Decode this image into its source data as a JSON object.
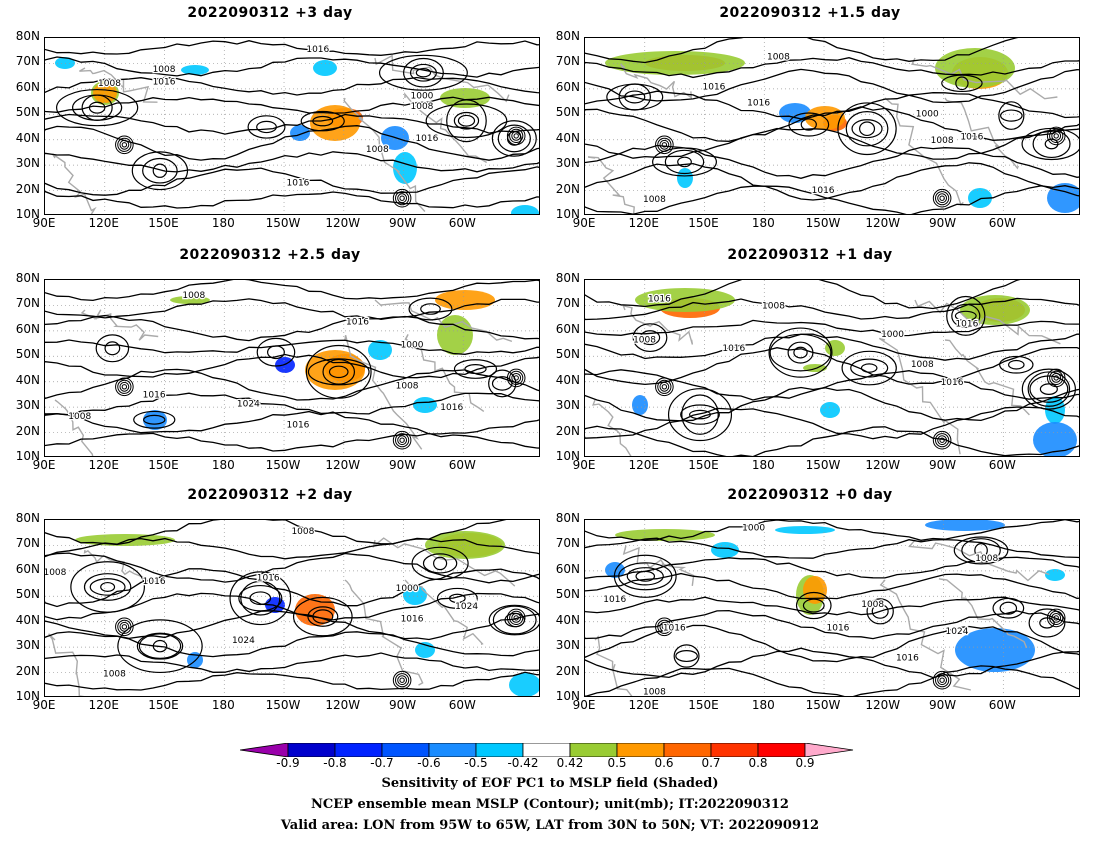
{
  "panels": [
    {
      "title": "2022090312 +3 day"
    },
    {
      "title": "2022090312 +1.5 day"
    },
    {
      "title": "2022090312 +2.5 day"
    },
    {
      "title": "2022090312 +1 day"
    },
    {
      "title": "2022090312 +2 day"
    },
    {
      "title": "2022090312 +0 day"
    }
  ],
  "lat_labels": [
    "80N",
    "70N",
    "60N",
    "50N",
    "40N",
    "30N",
    "20N",
    "10N"
  ],
  "lon_labels": [
    "90E",
    "120E",
    "150E",
    "180",
    "150W",
    "120W",
    "90W",
    "60W"
  ],
  "contour_labels": [
    [
      "1016",
      "1008",
      "1016",
      "1008",
      "1000",
      "1008",
      "1016",
      "1008",
      "1016"
    ],
    [
      "1008",
      "1016",
      "1016",
      "1000",
      "1008",
      "1016",
      "1008",
      "1016"
    ],
    [
      "1008",
      "1016",
      "1000",
      "1008",
      "1016",
      "1024",
      "1016",
      "1008",
      "1016"
    ],
    [
      "1016",
      "1008",
      "1008",
      "1016",
      "1000",
      "1016",
      "1008",
      "1016"
    ],
    [
      "1008",
      "1016",
      "1016",
      "1000",
      "1016",
      "1024",
      "1024",
      "1008",
      "1008"
    ],
    [
      "1000",
      "1008",
      "1016",
      "1008",
      "1016",
      "1016",
      "1024",
      "1016",
      "1008"
    ]
  ],
  "colorbar": {
    "labels": [
      "-0.9",
      "-0.8",
      "-0.7",
      "-0.6",
      "-0.5",
      "-0.42",
      "0.42",
      "0.5",
      "0.6",
      "0.7",
      "0.8",
      "0.9"
    ],
    "colors": [
      "#9900aa",
      "#0000cc",
      "#0022ff",
      "#0055ff",
      "#1a8cff",
      "#00c8ff",
      "#ffffff",
      "#99cc33",
      "#ff9900",
      "#ff6600",
      "#ff3300",
      "#ff0000",
      "#ffaacc"
    ]
  },
  "footer": {
    "line1": "Sensitivity of EOF PC1 to MSLP field (Shaded)",
    "line2": "NCEP ensemble mean MSLP (Contour); unit(mb); IT:2022090312",
    "line3": "Valid area: LON from 95W to 65W, LAT from 30N to 50N; VT: 2022090912"
  }
}
